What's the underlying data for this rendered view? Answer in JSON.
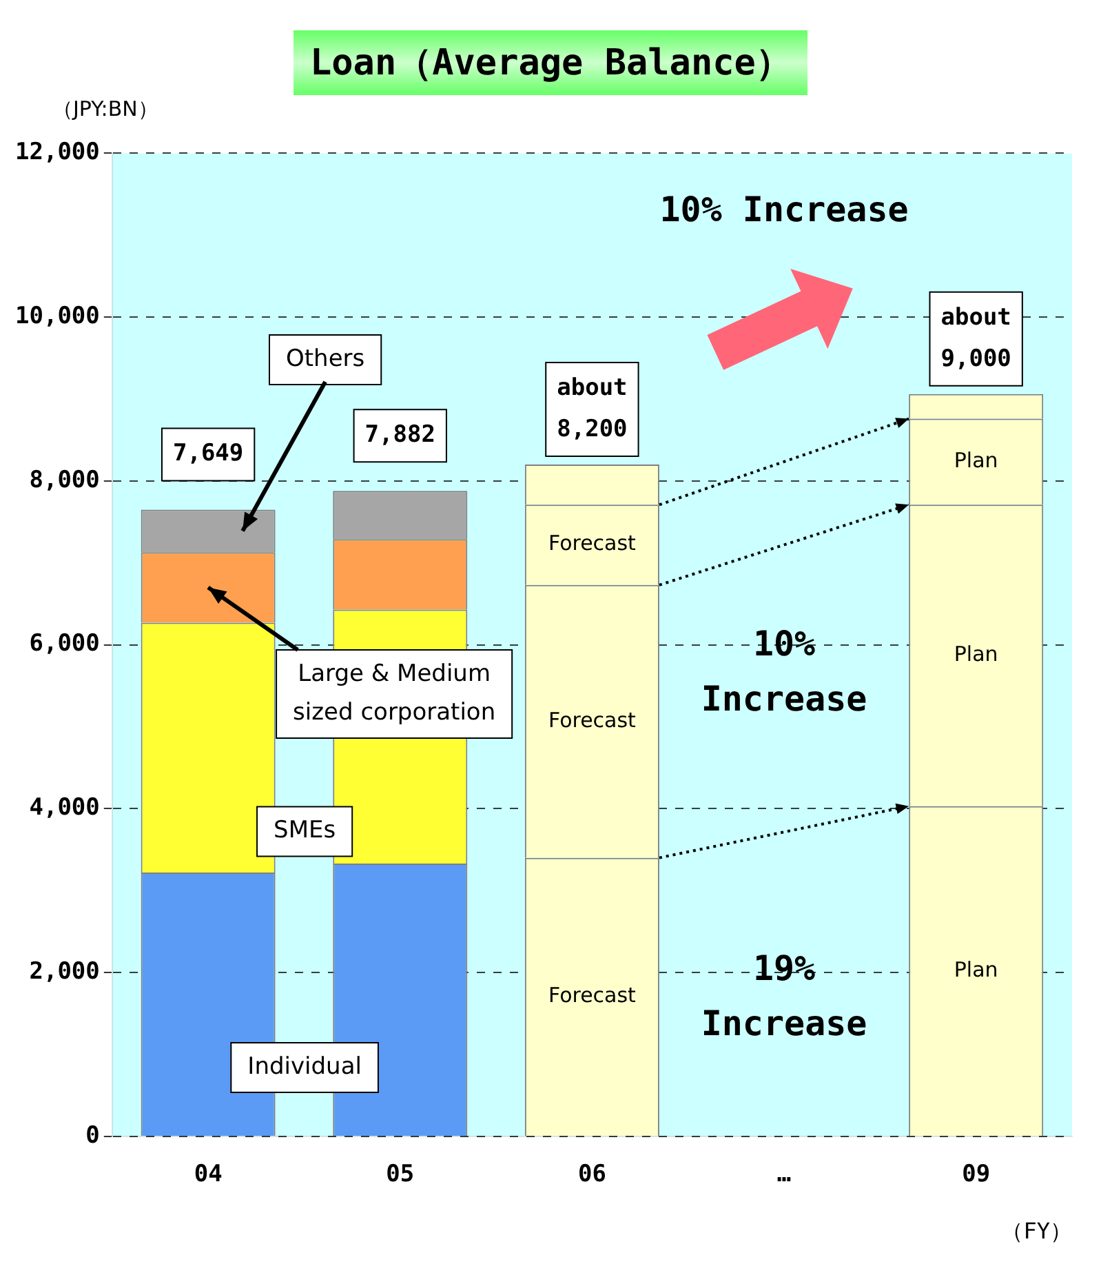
{
  "chart_data": {
    "type": "bar",
    "title": "Loan（Average Balance）",
    "ylabel": "（JPY:BN）",
    "xlabel": "（FY）",
    "categories": [
      "04",
      "05",
      "06",
      "…",
      "09"
    ],
    "stacked": true,
    "ylim": [
      0,
      12000
    ],
    "yticks": [
      0,
      {
        "value": 2000,
        "label": "2,000"
      },
      {
        "value": 4000,
        "label": "4,000"
      },
      {
        "value": 6000,
        "label": "6,000"
      },
      {
        "value": 8000,
        "label": "8,000"
      },
      {
        "value": 10000,
        "label": "10,000"
      },
      {
        "value": 12000,
        "label": "12,000"
      }
    ],
    "grid": "y",
    "legend": false,
    "series": [
      {
        "name": "Individual",
        "colors": [
          "#5b9bf5",
          "#5b9bf5",
          "#ffffcc",
          "#ffffcc",
          "#ffffcc"
        ],
        "values": [
          3220,
          3330,
          3400,
          null,
          4030
        ],
        "value_labels": [
          null,
          null,
          "Forecast",
          null,
          "Plan"
        ]
      },
      {
        "name": "SMEs",
        "colors": [
          "#ffff33",
          "#ffff33",
          "#ffffcc",
          "#ffffcc",
          "#ffffcc"
        ],
        "values": [
          3050,
          3100,
          3330,
          null,
          3680
        ],
        "value_labels": [
          null,
          null,
          "Forecast",
          null,
          "Plan"
        ]
      },
      {
        "name": "Large & Medium sized corporation",
        "colors": [
          "#ffa050",
          "#ffa050",
          "#ffffcc",
          "#ffffcc",
          "#ffffcc"
        ],
        "values": [
          860,
          860,
          980,
          null,
          1050
        ],
        "value_labels": [
          null,
          null,
          "Forecast",
          null,
          "Plan"
        ]
      },
      {
        "name": "Others",
        "colors": [
          "#a6a6a6",
          "#a6a6a6",
          "#ffffcc",
          "#ffffcc",
          "#ffffcc"
        ],
        "values": [
          520,
          590,
          490,
          null,
          300
        ]
      }
    ],
    "totals": [
      "7,649",
      "7,882",
      "about 8,200",
      null,
      "about 9,000"
    ],
    "annotations": [
      "10% Increase",
      "10% Increase",
      "19% Increase"
    ]
  }
}
